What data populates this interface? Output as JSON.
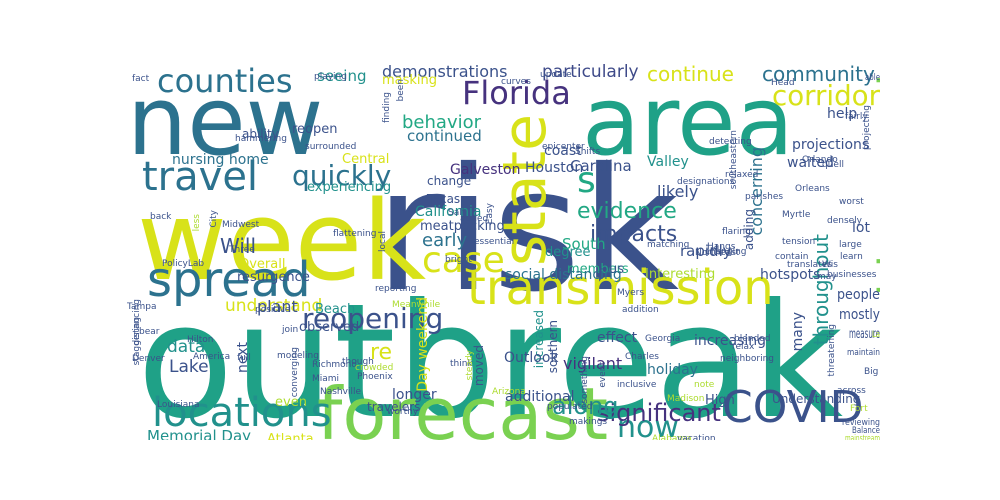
{
  "palette": {
    "dark_blue": "#3b528b",
    "indigo": "#46327e",
    "teal_blue": "#2c728e",
    "teal": "#21918c",
    "green_teal": "#1fa187",
    "green": "#5ec962",
    "lime": "#addc30",
    "yellow": "#d8e219"
  },
  "words": [
    {
      "text": "risk",
      "color": "#3b528b"
    },
    {
      "text": "outbreak",
      "color": "#1fa187"
    },
    {
      "text": "week",
      "color": "#d8e219"
    },
    {
      "text": "area",
      "color": "#1fa187"
    },
    {
      "text": "new",
      "color": "#2c728e"
    },
    {
      "text": "forecast",
      "color": "#7ad151"
    },
    {
      "text": "transmission",
      "color": "#d8e219"
    },
    {
      "text": "spread",
      "color": "#2c728e"
    },
    {
      "text": "state",
      "color": "#d8e219"
    },
    {
      "text": "COVID",
      "color": "#3b528b"
    },
    {
      "text": "locations",
      "color": "#21918c"
    },
    {
      "text": "travel",
      "color": "#2c728e"
    },
    {
      "text": "counties",
      "color": "#2c728e"
    },
    {
      "text": "Florida",
      "color": "#46327e"
    },
    {
      "text": "widespread",
      "color": "#7ad151"
    },
    {
      "text": "case",
      "color": "#d8e219"
    },
    {
      "text": "now",
      "color": "#21918c"
    },
    {
      "text": "s",
      "color": "#22a884"
    },
    {
      "text": "corridor",
      "color": "#d8e219"
    },
    {
      "text": "quickly",
      "color": "#2c728e"
    },
    {
      "text": "reopening",
      "color": "#3b528b"
    },
    {
      "text": "significant",
      "color": "#46327e"
    },
    {
      "text": "along",
      "color": "#21918c"
    },
    {
      "text": "impacts",
      "color": "#3b528b"
    },
    {
      "text": "evidence",
      "color": "#22a884"
    },
    {
      "text": "community",
      "color": "#2c728e"
    },
    {
      "text": "continue",
      "color": "#d8e219"
    },
    {
      "text": "particularly",
      "color": "#3e4a89"
    },
    {
      "text": "demonstrations",
      "color": "#3b528b"
    },
    {
      "text": "behavior",
      "color": "#22a884"
    },
    {
      "text": "concerning",
      "color": "#2c728e"
    },
    {
      "text": "throughout",
      "color": "#21918c"
    },
    {
      "text": "early",
      "color": "#2c728e"
    },
    {
      "text": "re",
      "color": "#d8e219"
    },
    {
      "text": "Will",
      "color": "#3b528b"
    },
    {
      "text": "understand",
      "color": "#d8e219"
    },
    {
      "text": "data",
      "color": "#21918c"
    },
    {
      "text": "Lake",
      "color": "#3b528b"
    },
    {
      "text": "next",
      "color": "#3b528b"
    },
    {
      "text": "Memorial Day",
      "color": "#21918c"
    },
    {
      "text": "Atlanta",
      "color": "#d8e219"
    },
    {
      "text": "even",
      "color": "#addc30"
    },
    {
      "text": "Day weekend",
      "color": "#d8e219"
    },
    {
      "text": "increased",
      "color": "#21918c"
    },
    {
      "text": "southern",
      "color": "#3b528b"
    },
    {
      "text": "longer",
      "color": "#3b528b"
    },
    {
      "text": "moved",
      "color": "#3b528b"
    },
    {
      "text": "additional",
      "color": "#3b528b"
    },
    {
      "text": "vigilant",
      "color": "#46327e"
    },
    {
      "text": "Outlook",
      "color": "#3b528b"
    },
    {
      "text": "effect",
      "color": "#3b528b"
    },
    {
      "text": "holiday",
      "color": "#2c728e"
    },
    {
      "text": "High",
      "color": "#3b528b"
    },
    {
      "text": "increasing",
      "color": "#3b528b"
    },
    {
      "text": "many",
      "color": "#3b528b"
    },
    {
      "text": "Understanding",
      "color": "#3b528b"
    },
    {
      "text": "people",
      "color": "#3b528b"
    },
    {
      "text": "mostly",
      "color": "#3b528b"
    },
    {
      "text": "measure",
      "color": "#3b528b"
    },
    {
      "text": "hotspots",
      "color": "#3b528b"
    },
    {
      "text": "Interesting",
      "color": "#addc30"
    },
    {
      "text": "members",
      "color": "#22a884"
    },
    {
      "text": "us",
      "color": "#3b528b"
    },
    {
      "text": "social distancing",
      "color": "#2c728e"
    },
    {
      "text": "South",
      "color": "#22a884"
    },
    {
      "text": "Carolina",
      "color": "#3b528b"
    },
    {
      "text": "rapidly",
      "color": "#3b528b"
    },
    {
      "text": "likely",
      "color": "#3b528b"
    },
    {
      "text": "help",
      "color": "#3b528b"
    },
    {
      "text": "projections",
      "color": "#3b528b"
    },
    {
      "text": "waited",
      "color": "#3b528b"
    },
    {
      "text": "lot",
      "color": "#3b528b"
    },
    {
      "text": "adding",
      "color": "#3b528b"
    },
    {
      "text": "Valley",
      "color": "#21918c"
    },
    {
      "text": "coast",
      "color": "#3b528b"
    },
    {
      "text": "Houston",
      "color": "#3b528b"
    },
    {
      "text": "Galveston",
      "color": "#46327e"
    },
    {
      "text": "continued",
      "color": "#2c728e"
    },
    {
      "text": "nursing home",
      "color": "#2c728e"
    },
    {
      "text": "seeing",
      "color": "#21918c"
    },
    {
      "text": "experiencing",
      "color": "#21918c"
    },
    {
      "text": "reopen",
      "color": "#3b528b"
    },
    {
      "text": "ability",
      "color": "#3b528b"
    },
    {
      "text": "Central",
      "color": "#d8e219"
    },
    {
      "text": "masking",
      "color": "#d8e219"
    },
    {
      "text": "California",
      "color": "#21918c"
    },
    {
      "text": "meatpacking",
      "color": "#3b528b"
    },
    {
      "text": "Texas",
      "color": "#3b528b"
    },
    {
      "text": "change",
      "color": "#3b528b"
    },
    {
      "text": "degree",
      "color": "#21918c"
    },
    {
      "text": "plant",
      "color": "#3b528b"
    },
    {
      "text": "observed",
      "color": "#3b528b"
    },
    {
      "text": "resurgence",
      "color": "#3b528b"
    },
    {
      "text": "Overall",
      "color": "#d8e219"
    },
    {
      "text": "Beach",
      "color": "#21918c"
    },
    {
      "text": "Midwest",
      "color": "#3b528b"
    },
    {
      "text": "PolicyLab",
      "color": "#3b528b"
    },
    {
      "text": "Tampa",
      "color": "#3b528b"
    },
    {
      "text": "Denver",
      "color": "#3b528b"
    },
    {
      "text": "Louisiana",
      "color": "#3b528b"
    },
    {
      "text": "Nashville",
      "color": "#3b528b"
    },
    {
      "text": "Miami",
      "color": "#3b528b"
    },
    {
      "text": "Richmond",
      "color": "#3b528b"
    },
    {
      "text": "travelers",
      "color": "#3b528b"
    },
    {
      "text": "Georgia",
      "color": "#3b528b"
    },
    {
      "text": "Charles",
      "color": "#3b528b"
    },
    {
      "text": "Alabama",
      "color": "#addc30"
    },
    {
      "text": "Madison",
      "color": "#addc30"
    },
    {
      "text": "vacation",
      "color": "#3b528b"
    },
    {
      "text": "Balance",
      "color": "#3b528b"
    },
    {
      "text": "reviewing",
      "color": "#3b528b"
    },
    {
      "text": "mainstream",
      "color": "#addc30"
    },
    {
      "text": "Fort",
      "color": "#addc30"
    },
    {
      "text": "maintain",
      "color": "#3b528b"
    },
    {
      "text": "Big",
      "color": "#3b528b"
    },
    {
      "text": "threatening",
      "color": "#3b528b"
    },
    {
      "text": "relax",
      "color": "#3b528b"
    },
    {
      "text": "note",
      "color": "#addc30"
    },
    {
      "text": "neighboring",
      "color": "#3b528b"
    },
    {
      "text": "blended",
      "color": "#3b528b"
    },
    {
      "text": "Orlando",
      "color": "#3b528b"
    },
    {
      "text": "Orleans",
      "color": "#3b528b"
    },
    {
      "text": "Myrtle",
      "color": "#3b528b"
    },
    {
      "text": "southeastern",
      "color": "#3b528b"
    },
    {
      "text": "Head",
      "color": "#3b528b"
    },
    {
      "text": "able",
      "color": "#3b528b"
    },
    {
      "text": "projecting",
      "color": "#3b528b"
    },
    {
      "text": "fairly",
      "color": "#3b528b"
    },
    {
      "text": "quell",
      "color": "#3b528b"
    },
    {
      "text": "worst",
      "color": "#3b528b"
    },
    {
      "text": "densely",
      "color": "#3b528b"
    },
    {
      "text": "large",
      "color": "#3b528b"
    },
    {
      "text": "learn",
      "color": "#3b528b"
    },
    {
      "text": "businesses",
      "color": "#3b528b"
    },
    {
      "text": "Wis",
      "color": "#3b528b"
    },
    {
      "text": "may",
      "color": "#3b528b"
    },
    {
      "text": "Hangs",
      "color": "#3b528b"
    },
    {
      "text": "tension",
      "color": "#3b528b"
    },
    {
      "text": "detecting",
      "color": "#3b528b"
    },
    {
      "text": "Northeast",
      "color": "#3b528b"
    },
    {
      "text": "translates",
      "color": "#3b528b"
    },
    {
      "text": "contain",
      "color": "#3b528b"
    },
    {
      "text": "flaring",
      "color": "#3b528b"
    },
    {
      "text": "changing",
      "color": "#3b528b"
    },
    {
      "text": "matching",
      "color": "#3b528b"
    },
    {
      "text": "parishes",
      "color": "#3b528b"
    },
    {
      "text": "designations",
      "color": "#3b528b"
    },
    {
      "text": "relaxed",
      "color": "#3b528b"
    },
    {
      "text": "epicenter",
      "color": "#3b528b"
    },
    {
      "text": "Shifts",
      "color": "#3b528b"
    },
    {
      "text": "curves",
      "color": "#3b528b"
    },
    {
      "text": "update",
      "color": "#3b528b"
    },
    {
      "text": "finding",
      "color": "#3b528b"
    },
    {
      "text": "been",
      "color": "#3b528b"
    },
    {
      "text": "playing",
      "color": "#3b528b"
    },
    {
      "text": "surrounded",
      "color": "#3b528b"
    },
    {
      "text": "hammering",
      "color": "#3b528b"
    },
    {
      "text": "fact",
      "color": "#3b528b"
    },
    {
      "text": "back",
      "color": "#3b528b"
    },
    {
      "text": "less",
      "color": "#addc30"
    },
    {
      "text": "City",
      "color": "#3b528b"
    },
    {
      "text": "Three",
      "color": "#3b528b"
    },
    {
      "text": "flattening",
      "color": "#3b528b"
    },
    {
      "text": "added",
      "color": "#3b528b"
    },
    {
      "text": "Easy",
      "color": "#3b528b"
    },
    {
      "text": "Salt",
      "color": "#3b528b"
    },
    {
      "text": "essential",
      "color": "#3b528b"
    },
    {
      "text": "local",
      "color": "#3b528b"
    },
    {
      "text": "bright",
      "color": "#3b528b"
    },
    {
      "text": "reporting",
      "color": "#3b528b"
    },
    {
      "text": "Meanwhile",
      "color": "#addc30"
    },
    {
      "text": "think",
      "color": "#3b528b"
    },
    {
      "text": "addition",
      "color": "#3b528b"
    },
    {
      "text": "Myers",
      "color": "#3b528b"
    },
    {
      "text": "bear",
      "color": "#3b528b"
    },
    {
      "text": "positive",
      "color": "#3b528b"
    },
    {
      "text": "Hilton",
      "color": "#3b528b"
    },
    {
      "text": "staggering",
      "color": "#3b528b"
    },
    {
      "text": "distancing",
      "color": "#3b528b"
    },
    {
      "text": "join",
      "color": "#3b528b"
    },
    {
      "text": "modeling",
      "color": "#3b528b"
    },
    {
      "text": "full",
      "color": "#3b528b"
    },
    {
      "text": "converging",
      "color": "#3b528b"
    },
    {
      "text": "America",
      "color": "#3b528b"
    },
    {
      "text": "crowded",
      "color": "#addc30"
    },
    {
      "text": "though",
      "color": "#3b528b"
    },
    {
      "text": "Phoenix",
      "color": "#3b528b"
    },
    {
      "text": "steady",
      "color": "#addc30"
    },
    {
      "text": "Arizona",
      "color": "#addc30"
    },
    {
      "text": "worthy",
      "color": "#3b528b"
    },
    {
      "text": "populated",
      "color": "#3b528b"
    },
    {
      "text": "makings",
      "color": "#3b528b"
    },
    {
      "text": "inclusive",
      "color": "#3b528b"
    },
    {
      "text": "something",
      "color": "#3b528b"
    },
    {
      "text": "event",
      "color": "#3b528b"
    },
    {
      "text": "across",
      "color": "#3b528b"
    },
    {
      "text": "La",
      "color": "#addc30"
    },
    {
      "text": "non",
      "color": "#3b528b"
    }
  ]
}
